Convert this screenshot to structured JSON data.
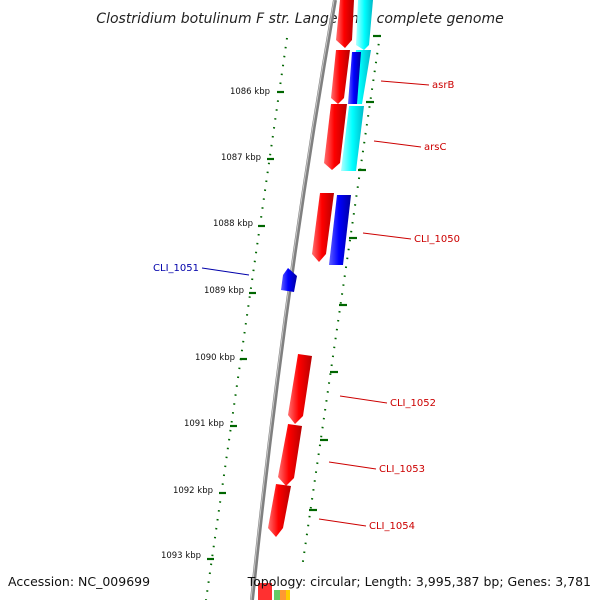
{
  "title": "Clostridium botulinum F str. Langeland, complete genome",
  "footer": {
    "accession": "Accession: NC_009699",
    "summary": "Topology: circular; Length: 3,995,387 bp; Genes: 3,781"
  },
  "colors": {
    "cds": "#ff0000",
    "cds_reverse": "#0000ff",
    "cds_overlay": "#00ffff",
    "tick": "#006600",
    "backbone": "#808080",
    "label_forward": "#cc0000",
    "label_reverse": "#0000aa"
  },
  "ticks": [
    {
      "label": "1086 kbp"
    },
    {
      "label": "1087 kbp"
    },
    {
      "label": "1088 kbp"
    },
    {
      "label": "1089 kbp"
    },
    {
      "label": "1090 kbp"
    },
    {
      "label": "1091 kbp"
    },
    {
      "label": "1092 kbp"
    },
    {
      "label": "1093 kbp"
    }
  ],
  "genes": [
    {
      "label": "asrB"
    },
    {
      "label": "arsC"
    },
    {
      "label": "CLI_1050"
    },
    {
      "label": "CLI_1051"
    },
    {
      "label": "CLI_1052"
    },
    {
      "label": "CLI_1053"
    },
    {
      "label": "CLI_1054"
    }
  ]
}
